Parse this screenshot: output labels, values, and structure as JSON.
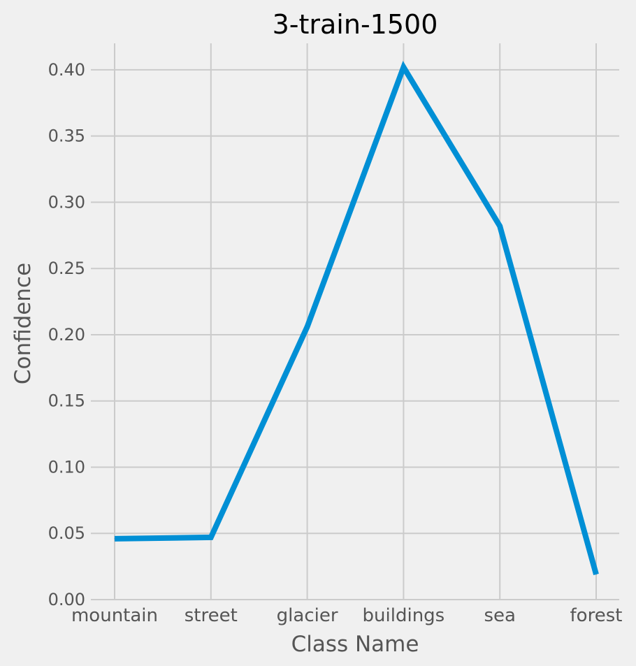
{
  "chart_data": {
    "type": "line",
    "title": "3-train-1500",
    "xlabel": "Class Name",
    "ylabel": "Confidence",
    "categories": [
      "mountain",
      "street",
      "glacier",
      "buildings",
      "sea",
      "forest"
    ],
    "series": [
      {
        "values": [
          0.046,
          0.047,
          0.206,
          0.402,
          0.282,
          0.019
        ]
      }
    ],
    "ylim": [
      0,
      0.42
    ],
    "yticks": [
      "0.00",
      "0.05",
      "0.10",
      "0.15",
      "0.20",
      "0.25",
      "0.30",
      "0.35",
      "0.40"
    ],
    "grid": true,
    "line_color": "#008fd5",
    "background": "#f0f0f0"
  }
}
